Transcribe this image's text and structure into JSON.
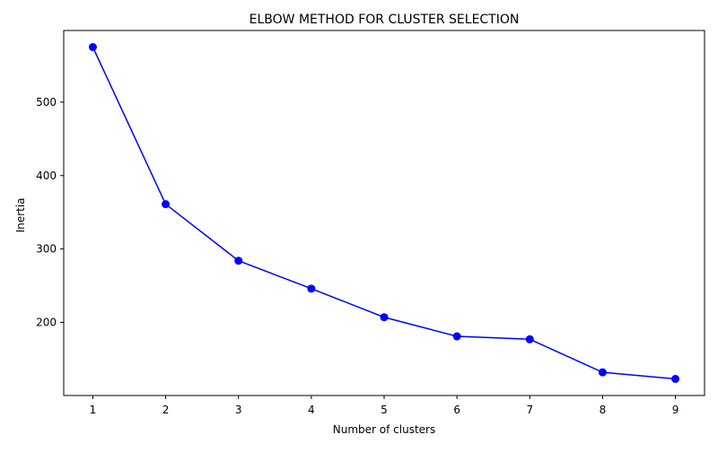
{
  "chart_data": {
    "type": "line",
    "title": "ELBOW METHOD FOR CLUSTER SELECTION",
    "xlabel": "Number of clusters",
    "ylabel": "Inertia",
    "x": [
      1,
      2,
      3,
      4,
      5,
      6,
      7,
      8,
      9
    ],
    "series": [
      {
        "values": [
          575,
          361,
          284,
          246,
          207,
          181,
          177,
          132,
          123
        ],
        "color": "#0000ff",
        "marker": "circle"
      }
    ],
    "xticks": [
      1,
      2,
      3,
      4,
      5,
      6,
      7,
      8,
      9
    ],
    "yticks": [
      200,
      300,
      400,
      500
    ],
    "xlim": [
      0.6,
      9.4
    ],
    "ylim": [
      100.4,
      597.6
    ],
    "grid": false,
    "legend": false
  }
}
